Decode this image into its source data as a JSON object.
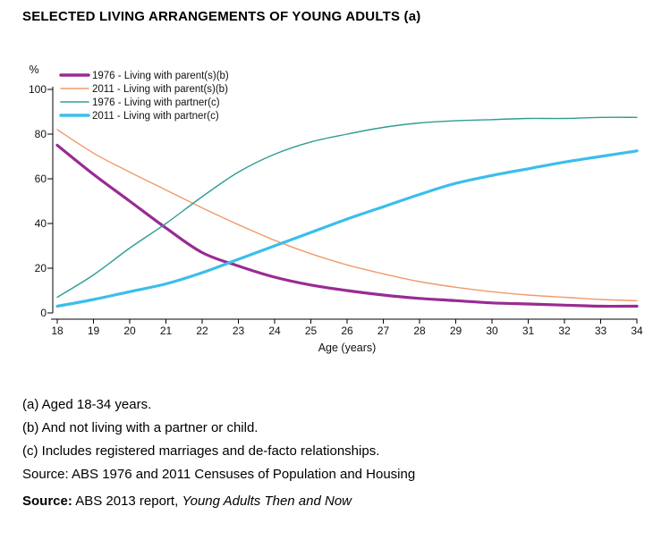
{
  "page_title": "SELECTED LIVING ARRANGEMENTS OF YOUNG ADULTS (a)",
  "chart_data": {
    "type": "line",
    "title": "SELECTED LIVING ARRANGEMENTS OF YOUNG ADULTS (a)",
    "xlabel": "Age (years)",
    "ylabel": "%",
    "x": [
      18,
      19,
      20,
      21,
      22,
      23,
      24,
      25,
      26,
      27,
      28,
      29,
      30,
      31,
      32,
      33,
      34
    ],
    "xlim": [
      18,
      34
    ],
    "ylim": [
      0,
      100
    ],
    "yticks": [
      0,
      20,
      40,
      60,
      80,
      100
    ],
    "grid": false,
    "legend_position": "top-left",
    "series": [
      {
        "name": "1976 - Living with parent(s)(b)",
        "color": "#992B93",
        "thick": true,
        "values": [
          75,
          62,
          50,
          38,
          27,
          21,
          16,
          12.5,
          10,
          8,
          6.5,
          5.5,
          4.5,
          4,
          3.5,
          3,
          3
        ]
      },
      {
        "name": "2011 - Living with parent(s)(b)",
        "color": "#F29A6B",
        "thick": false,
        "values": [
          82,
          71.5,
          63,
          55,
          47,
          39.5,
          32.5,
          26.5,
          21.5,
          17.5,
          14,
          11.5,
          9.5,
          8,
          7,
          6,
          5.5
        ]
      },
      {
        "name": "1976 - Living with partner(c)",
        "color": "#2E9E92",
        "thick": false,
        "values": [
          7,
          17,
          29,
          40,
          52,
          63,
          71,
          76.5,
          80,
          83,
          85,
          86,
          86.5,
          87,
          87,
          87.5,
          87.5
        ]
      },
      {
        "name": "2011 - Living with partner(c)",
        "color": "#3ABEEB",
        "thick": true,
        "values": [
          3,
          6,
          9.5,
          13,
          18,
          24,
          30,
          36,
          42,
          47.5,
          53,
          58,
          61.5,
          64.5,
          67.5,
          70,
          72.5
        ]
      }
    ]
  },
  "footnotes": [
    "(a) Aged 18-34 years.",
    "(b) And not living with a partner or child.",
    "(c) Includes registered marriages and de-facto relationships.",
    "Source: ABS 1976 and 2011 Censuses of Population and Housing"
  ],
  "source_line": {
    "label": "Source:",
    "text": " ABS 2013 report, ",
    "title": "Young Adults Then and Now"
  }
}
